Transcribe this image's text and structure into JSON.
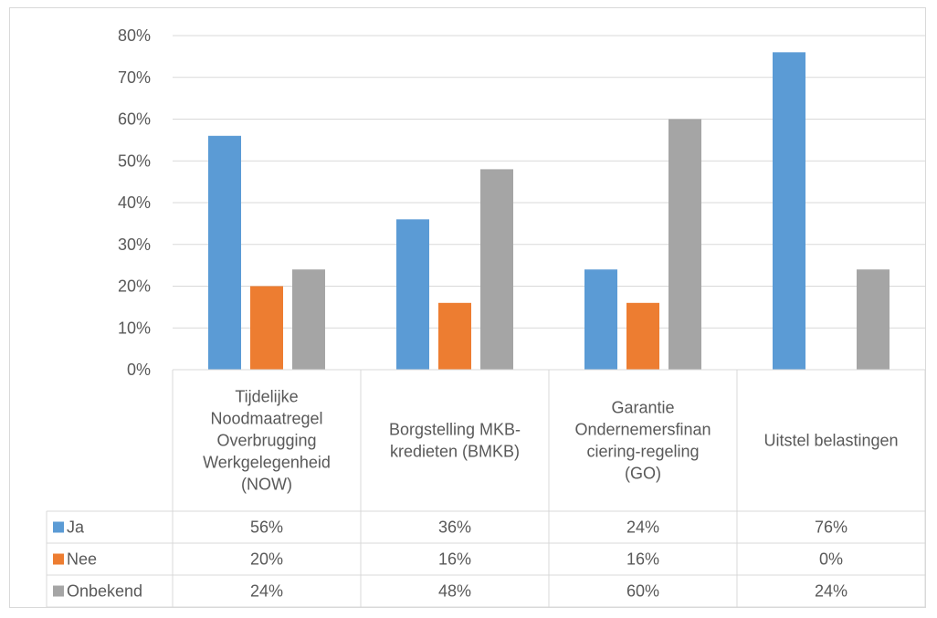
{
  "chart_data": {
    "type": "bar",
    "categories": [
      [
        "Tijdelijke",
        "Noodmaatregel",
        "Overbrugging",
        "Werkgelegenheid",
        "(NOW)"
      ],
      [
        "Borgstelling MKB-",
        "kredieten (BMKB)"
      ],
      [
        "Garantie",
        "Ondernemersfinan",
        "ciering-regeling",
        "(GO)"
      ],
      [
        "Uitstel belastingen"
      ]
    ],
    "series": [
      {
        "name": "Ja",
        "color": "#5b9bd5",
        "values": [
          56,
          36,
          24,
          76
        ],
        "labels": [
          "56%",
          "36%",
          "24%",
          "76%"
        ]
      },
      {
        "name": "Nee",
        "color": "#ed7d31",
        "values": [
          20,
          16,
          16,
          0
        ],
        "labels": [
          "20%",
          "16%",
          "16%",
          "0%"
        ]
      },
      {
        "name": "Onbekend",
        "color": "#a5a5a5",
        "values": [
          24,
          48,
          60,
          24
        ],
        "labels": [
          "24%",
          "48%",
          "60%",
          "24%"
        ]
      }
    ],
    "yticks": [
      "0%",
      "10%",
      "20%",
      "30%",
      "40%",
      "50%",
      "60%",
      "70%",
      "80%"
    ],
    "ylim": [
      0,
      80
    ],
    "grid": true,
    "legend": "data-table"
  }
}
